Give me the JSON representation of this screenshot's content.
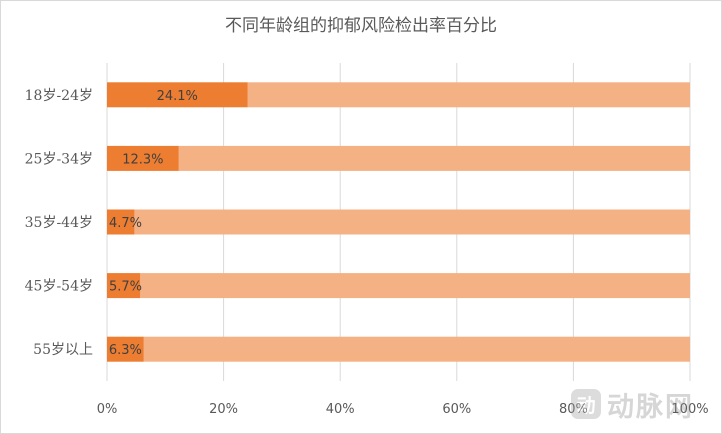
{
  "chart_data": {
    "type": "bar",
    "orientation": "horizontal",
    "stacked": "100%",
    "title": "不同年龄组的抑郁风险检出率百分比",
    "categories": [
      "18岁-24岁",
      "25岁-34岁",
      "35岁-44岁",
      "45岁-54岁",
      "55岁以上"
    ],
    "values": [
      24.1,
      12.3,
      4.7,
      5.7,
      6.3
    ],
    "value_labels": [
      "24.1%",
      "12.3%",
      "4.7%",
      "5.7%",
      "6.3%"
    ],
    "remainder_values": [
      75.9,
      87.7,
      95.3,
      94.3,
      93.7
    ],
    "xticks": [
      "0%",
      "20%",
      "40%",
      "60%",
      "80%",
      "100%"
    ],
    "xlim": [
      0,
      100
    ],
    "grid": true,
    "colors": {
      "value": "#ed7d31",
      "remainder": "#f4b183",
      "grid": "#d9d9d9",
      "text": "#595959",
      "label": "#404040"
    }
  },
  "watermark": {
    "badge": "动",
    "text": "动脉网"
  }
}
